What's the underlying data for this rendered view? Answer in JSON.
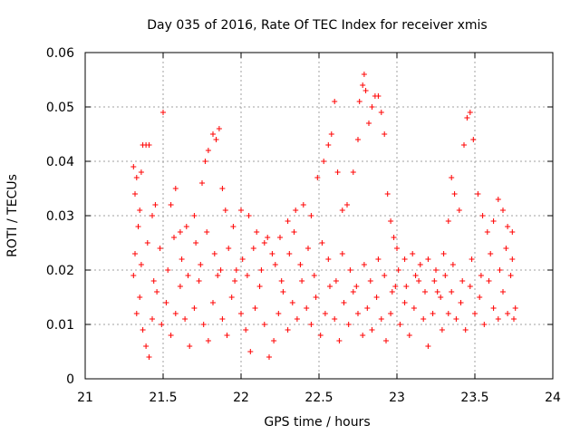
{
  "chart_data": {
    "type": "scatter",
    "title": "Day 035 of 2016, Rate Of TEC Index for receiver xmis",
    "xlabel": "GPS time / hours",
    "ylabel": "ROTI / TECUs",
    "xlim": [
      21,
      24
    ],
    "ylim": [
      0,
      0.06
    ],
    "x_ticks": [
      21,
      21.5,
      22,
      22.5,
      23,
      23.5,
      24
    ],
    "x_tick_labels": [
      "21",
      "21.5",
      "22",
      "22.5",
      "23",
      "23.5",
      "24"
    ],
    "y_ticks": [
      0,
      0.01,
      0.02,
      0.03,
      0.04,
      0.05,
      0.06
    ],
    "y_tick_labels": [
      "0",
      "0.01",
      "0.02",
      "0.03",
      "0.04",
      "0.05",
      "0.06"
    ],
    "grid": true,
    "marker": "plus",
    "color": "#ff0000",
    "series": [
      {
        "name": "ROTI",
        "points": [
          [
            21.31,
            0.039
          ],
          [
            21.32,
            0.034
          ],
          [
            21.33,
            0.037
          ],
          [
            21.34,
            0.028
          ],
          [
            21.35,
            0.031
          ],
          [
            21.36,
            0.038
          ],
          [
            21.37,
            0.043
          ],
          [
            21.39,
            0.043
          ],
          [
            21.41,
            0.043
          ],
          [
            21.43,
            0.03
          ],
          [
            21.45,
            0.032
          ],
          [
            21.5,
            0.049
          ],
          [
            21.55,
            0.032
          ],
          [
            21.58,
            0.035
          ],
          [
            21.61,
            0.027
          ],
          [
            21.65,
            0.028
          ],
          [
            21.7,
            0.03
          ],
          [
            21.75,
            0.036
          ],
          [
            21.77,
            0.04
          ],
          [
            21.79,
            0.042
          ],
          [
            21.82,
            0.045
          ],
          [
            21.84,
            0.044
          ],
          [
            21.86,
            0.046
          ],
          [
            21.88,
            0.035
          ],
          [
            21.9,
            0.031
          ],
          [
            21.95,
            0.028
          ],
          [
            22.0,
            0.031
          ],
          [
            22.05,
            0.03
          ],
          [
            22.1,
            0.027
          ],
          [
            22.15,
            0.025
          ],
          [
            22.2,
            0.023
          ],
          [
            22.25,
            0.026
          ],
          [
            22.3,
            0.029
          ],
          [
            22.35,
            0.031
          ],
          [
            22.4,
            0.032
          ],
          [
            22.45,
            0.03
          ],
          [
            22.49,
            0.037
          ],
          [
            22.53,
            0.04
          ],
          [
            22.56,
            0.043
          ],
          [
            22.58,
            0.045
          ],
          [
            22.6,
            0.051
          ],
          [
            22.62,
            0.038
          ],
          [
            22.65,
            0.031
          ],
          [
            22.68,
            0.032
          ],
          [
            22.72,
            0.038
          ],
          [
            22.75,
            0.044
          ],
          [
            22.76,
            0.051
          ],
          [
            22.78,
            0.054
          ],
          [
            22.79,
            0.056
          ],
          [
            22.8,
            0.053
          ],
          [
            22.82,
            0.047
          ],
          [
            22.84,
            0.05
          ],
          [
            22.86,
            0.052
          ],
          [
            22.88,
            0.052
          ],
          [
            22.9,
            0.049
          ],
          [
            22.92,
            0.045
          ],
          [
            22.94,
            0.034
          ],
          [
            22.96,
            0.029
          ],
          [
            22.98,
            0.026
          ],
          [
            23.0,
            0.024
          ],
          [
            23.05,
            0.022
          ],
          [
            23.1,
            0.023
          ],
          [
            23.15,
            0.021
          ],
          [
            23.2,
            0.022
          ],
          [
            23.25,
            0.02
          ],
          [
            23.3,
            0.023
          ],
          [
            23.33,
            0.029
          ],
          [
            23.35,
            0.037
          ],
          [
            23.37,
            0.034
          ],
          [
            23.4,
            0.031
          ],
          [
            23.43,
            0.043
          ],
          [
            23.45,
            0.048
          ],
          [
            23.47,
            0.049
          ],
          [
            23.49,
            0.044
          ],
          [
            23.52,
            0.034
          ],
          [
            23.55,
            0.03
          ],
          [
            23.58,
            0.027
          ],
          [
            23.62,
            0.029
          ],
          [
            23.65,
            0.033
          ],
          [
            23.68,
            0.031
          ],
          [
            23.71,
            0.028
          ],
          [
            23.74,
            0.027
          ],
          [
            23.31,
            0.019
          ],
          [
            23.33,
            0.012
          ],
          [
            23.35,
            0.016
          ],
          [
            23.38,
            0.011
          ],
          [
            23.41,
            0.014
          ],
          [
            23.44,
            0.009
          ],
          [
            23.47,
            0.017
          ],
          [
            23.5,
            0.012
          ],
          [
            23.53,
            0.015
          ],
          [
            23.56,
            0.01
          ],
          [
            23.59,
            0.018
          ],
          [
            23.62,
            0.013
          ],
          [
            23.65,
            0.011
          ],
          [
            23.68,
            0.016
          ],
          [
            23.71,
            0.012
          ],
          [
            23.73,
            0.019
          ],
          [
            23.75,
            0.011
          ],
          [
            23.76,
            0.013
          ],
          [
            21.31,
            0.019
          ],
          [
            21.33,
            0.012
          ],
          [
            21.35,
            0.015
          ],
          [
            21.37,
            0.009
          ],
          [
            21.39,
            0.006
          ],
          [
            21.41,
            0.004
          ],
          [
            21.43,
            0.011
          ],
          [
            21.46,
            0.016
          ],
          [
            21.49,
            0.01
          ],
          [
            21.52,
            0.014
          ],
          [
            21.55,
            0.008
          ],
          [
            21.58,
            0.012
          ],
          [
            21.61,
            0.017
          ],
          [
            21.64,
            0.011
          ],
          [
            21.67,
            0.006
          ],
          [
            21.7,
            0.013
          ],
          [
            21.73,
            0.018
          ],
          [
            21.76,
            0.01
          ],
          [
            21.79,
            0.007
          ],
          [
            21.82,
            0.014
          ],
          [
            21.85,
            0.019
          ],
          [
            21.88,
            0.011
          ],
          [
            21.91,
            0.008
          ],
          [
            21.94,
            0.015
          ],
          [
            21.97,
            0.02
          ],
          [
            22.0,
            0.012
          ],
          [
            22.03,
            0.009
          ],
          [
            22.06,
            0.005
          ],
          [
            22.09,
            0.013
          ],
          [
            22.12,
            0.017
          ],
          [
            22.15,
            0.01
          ],
          [
            22.18,
            0.004
          ],
          [
            22.21,
            0.007
          ],
          [
            22.24,
            0.012
          ],
          [
            22.27,
            0.016
          ],
          [
            22.3,
            0.009
          ],
          [
            22.33,
            0.014
          ],
          [
            22.36,
            0.011
          ],
          [
            22.39,
            0.018
          ],
          [
            22.42,
            0.013
          ],
          [
            22.45,
            0.01
          ],
          [
            22.48,
            0.015
          ],
          [
            22.51,
            0.008
          ],
          [
            22.54,
            0.012
          ],
          [
            22.57,
            0.017
          ],
          [
            22.6,
            0.011
          ],
          [
            22.63,
            0.007
          ],
          [
            22.66,
            0.014
          ],
          [
            22.69,
            0.01
          ],
          [
            22.72,
            0.016
          ],
          [
            22.75,
            0.012
          ],
          [
            22.78,
            0.008
          ],
          [
            22.81,
            0.013
          ],
          [
            22.84,
            0.009
          ],
          [
            22.87,
            0.015
          ],
          [
            22.9,
            0.011
          ],
          [
            22.93,
            0.007
          ],
          [
            22.96,
            0.012
          ],
          [
            22.99,
            0.017
          ],
          [
            23.02,
            0.01
          ],
          [
            23.05,
            0.014
          ],
          [
            23.08,
            0.008
          ],
          [
            23.11,
            0.013
          ],
          [
            23.14,
            0.018
          ],
          [
            23.17,
            0.011
          ],
          [
            23.2,
            0.006
          ],
          [
            23.23,
            0.012
          ],
          [
            23.26,
            0.016
          ],
          [
            23.29,
            0.009
          ],
          [
            21.32,
            0.023
          ],
          [
            21.36,
            0.021
          ],
          [
            21.4,
            0.025
          ],
          [
            21.44,
            0.018
          ],
          [
            21.48,
            0.024
          ],
          [
            21.53,
            0.02
          ],
          [
            21.57,
            0.026
          ],
          [
            21.62,
            0.022
          ],
          [
            21.66,
            0.019
          ],
          [
            21.71,
            0.025
          ],
          [
            21.74,
            0.021
          ],
          [
            21.78,
            0.027
          ],
          [
            21.83,
            0.023
          ],
          [
            21.87,
            0.02
          ],
          [
            21.92,
            0.024
          ],
          [
            21.96,
            0.018
          ],
          [
            22.01,
            0.022
          ],
          [
            22.04,
            0.019
          ],
          [
            22.08,
            0.024
          ],
          [
            22.13,
            0.02
          ],
          [
            22.17,
            0.026
          ],
          [
            22.22,
            0.021
          ],
          [
            22.26,
            0.018
          ],
          [
            22.31,
            0.023
          ],
          [
            22.34,
            0.027
          ],
          [
            22.38,
            0.021
          ],
          [
            22.43,
            0.024
          ],
          [
            22.47,
            0.019
          ],
          [
            22.52,
            0.025
          ],
          [
            22.56,
            0.022
          ],
          [
            22.61,
            0.018
          ],
          [
            22.65,
            0.023
          ],
          [
            22.7,
            0.02
          ],
          [
            22.74,
            0.017
          ],
          [
            22.79,
            0.021
          ],
          [
            22.83,
            0.018
          ],
          [
            22.88,
            0.022
          ],
          [
            22.92,
            0.019
          ],
          [
            22.97,
            0.016
          ],
          [
            23.01,
            0.02
          ],
          [
            23.06,
            0.017
          ],
          [
            23.12,
            0.019
          ],
          [
            23.18,
            0.016
          ],
          [
            23.24,
            0.018
          ],
          [
            23.28,
            0.015
          ],
          [
            23.36,
            0.021
          ],
          [
            23.42,
            0.018
          ],
          [
            23.48,
            0.022
          ],
          [
            23.54,
            0.019
          ],
          [
            23.6,
            0.023
          ],
          [
            23.66,
            0.02
          ],
          [
            23.7,
            0.024
          ],
          [
            23.74,
            0.022
          ]
        ]
      }
    ]
  }
}
